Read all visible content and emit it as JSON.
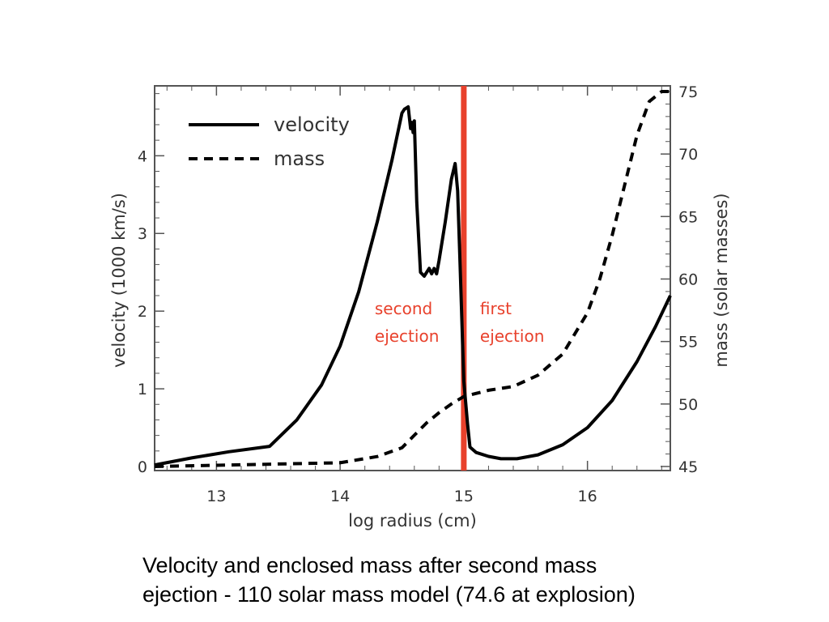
{
  "caption": {
    "line1": "Velocity and enclosed mass after second mass",
    "line2": "ejection - 110 solar mass model (74.6 at explosion)"
  },
  "chart_data": {
    "type": "line",
    "xlabel": "log radius (cm)",
    "ylabel": "velocity (1000 km/s)",
    "y2label": "mass (solar masses)",
    "xlim": [
      12.5,
      16.67
    ],
    "ylim": [
      0,
      4.9
    ],
    "y2lim": [
      45,
      75
    ],
    "xticks": [
      13,
      14,
      15,
      16
    ],
    "yticks": [
      0,
      1,
      2,
      3,
      4
    ],
    "y2ticks": [
      45,
      50,
      55,
      60,
      65,
      70,
      75
    ],
    "legend_position": "top-left",
    "grid": false,
    "colors": {
      "axes": "#555555",
      "lines": "#000000",
      "marker": "#e8412c"
    },
    "marker": {
      "x": 15.0,
      "labels": [
        {
          "text1": "second",
          "text2": "ejection",
          "side": "left"
        },
        {
          "text1": "first",
          "text2": "ejection",
          "side": "right"
        }
      ]
    },
    "series": [
      {
        "name": "velocity",
        "axis": "left",
        "style": "solid",
        "x": [
          12.5,
          12.8,
          13.1,
          13.43,
          13.65,
          13.85,
          14.0,
          14.15,
          14.3,
          14.42,
          14.5,
          14.52,
          14.55,
          14.57,
          14.58,
          14.59,
          14.6,
          14.62,
          14.65,
          14.68,
          14.72,
          14.74,
          14.76,
          14.78,
          14.8,
          14.85,
          14.9,
          14.93,
          14.95,
          14.97,
          15.0,
          15.03,
          15.05,
          15.1,
          15.2,
          15.3,
          15.43,
          15.6,
          15.8,
          16.0,
          16.2,
          16.4,
          16.55,
          16.67
        ],
        "y": [
          0.02,
          0.11,
          0.19,
          0.26,
          0.6,
          1.05,
          1.55,
          2.25,
          3.15,
          3.95,
          4.55,
          4.6,
          4.63,
          4.35,
          4.43,
          4.3,
          4.45,
          3.4,
          2.5,
          2.45,
          2.55,
          2.48,
          2.55,
          2.48,
          2.65,
          3.15,
          3.7,
          3.9,
          3.55,
          2.6,
          1.1,
          0.55,
          0.25,
          0.18,
          0.13,
          0.1,
          0.1,
          0.15,
          0.28,
          0.5,
          0.85,
          1.35,
          1.8,
          2.2
        ]
      },
      {
        "name": "mass",
        "axis": "right",
        "style": "dashed",
        "x": [
          12.5,
          13.0,
          13.5,
          14.0,
          14.3,
          14.5,
          14.6,
          14.7,
          14.8,
          14.9,
          15.0,
          15.2,
          15.4,
          15.6,
          15.8,
          16.0,
          16.1,
          16.2,
          16.3,
          16.4,
          16.5,
          16.6,
          16.67
        ],
        "y": [
          45.0,
          45.1,
          45.2,
          45.3,
          45.8,
          46.5,
          47.5,
          48.5,
          49.3,
          50.0,
          50.6,
          51.1,
          51.4,
          52.3,
          54.0,
          57.3,
          60.0,
          63.5,
          67.5,
          71.5,
          74.2,
          75.0,
          75.0
        ]
      }
    ]
  }
}
